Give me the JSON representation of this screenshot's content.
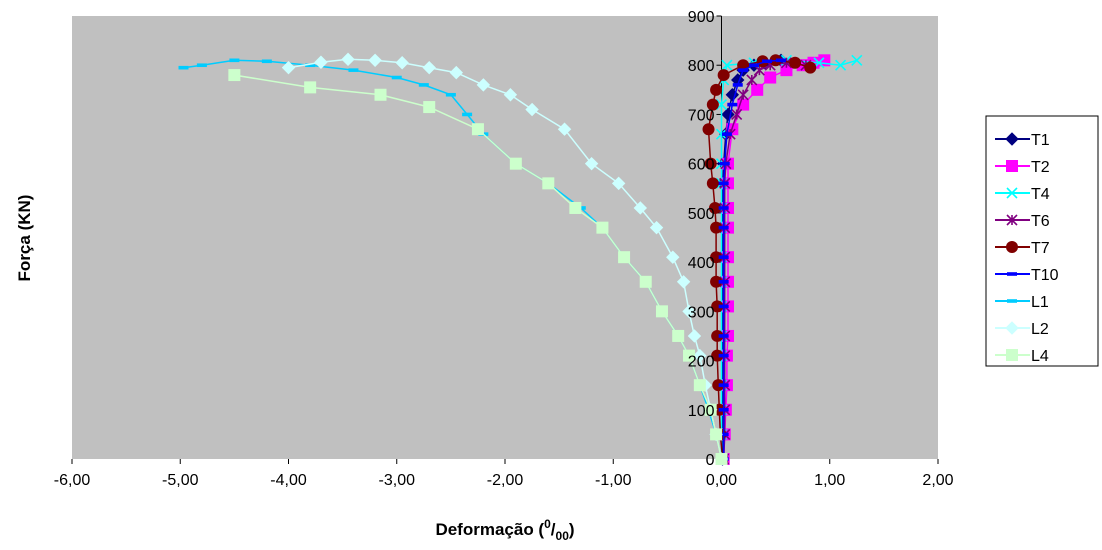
{
  "chart_data": {
    "type": "line",
    "xlabel": "Deformação (",
    "xlabel_sup": "0",
    "xlabel_slash": "/",
    "xlabel_sub": "00",
    "xlabel_end": ")",
    "ylabel": "Força (KN)",
    "xlim": [
      -6,
      2
    ],
    "ylim": [
      0,
      900
    ],
    "x_ticks": [
      -6,
      -5,
      -4,
      -3,
      -2,
      -1,
      0,
      1,
      2
    ],
    "x_tick_labels": [
      "-6,00",
      "-5,00",
      "-4,00",
      "-3,00",
      "-2,00",
      "-1,00",
      "0,00",
      "1,00",
      "2,00"
    ],
    "y_ticks": [
      0,
      100,
      200,
      300,
      400,
      500,
      600,
      700,
      800,
      900
    ],
    "y_tick_labels": [
      "0",
      "100",
      "200",
      "300",
      "400",
      "500",
      "600",
      "700",
      "800",
      "900"
    ],
    "plot_background": "#c0c0c0",
    "grid": false,
    "legend_position": "right",
    "series": [
      {
        "name": "T1",
        "color": "#000080",
        "marker": "diamond",
        "points": [
          [
            0.01,
            0
          ],
          [
            0.01,
            50
          ],
          [
            0.01,
            100
          ],
          [
            0.01,
            150
          ],
          [
            0.01,
            210
          ],
          [
            0.01,
            250
          ],
          [
            0.01,
            310
          ],
          [
            0.01,
            360
          ],
          [
            0.01,
            410
          ],
          [
            0.01,
            470
          ],
          [
            0.01,
            510
          ],
          [
            0.01,
            560
          ],
          [
            0.02,
            600
          ],
          [
            0.04,
            660
          ],
          [
            0.06,
            700
          ],
          [
            0.1,
            740
          ],
          [
            0.15,
            770
          ],
          [
            0.2,
            790
          ],
          [
            0.3,
            800
          ],
          [
            0.4,
            805
          ],
          [
            0.55,
            810
          ]
        ]
      },
      {
        "name": "T2",
        "color": "#ff00ff",
        "marker": "square",
        "points": [
          [
            0.02,
            0
          ],
          [
            0.03,
            50
          ],
          [
            0.04,
            100
          ],
          [
            0.05,
            150
          ],
          [
            0.05,
            210
          ],
          [
            0.06,
            250
          ],
          [
            0.06,
            310
          ],
          [
            0.06,
            360
          ],
          [
            0.06,
            410
          ],
          [
            0.06,
            470
          ],
          [
            0.06,
            510
          ],
          [
            0.06,
            560
          ],
          [
            0.06,
            600
          ],
          [
            0.1,
            670
          ],
          [
            0.2,
            720
          ],
          [
            0.33,
            750
          ],
          [
            0.45,
            775
          ],
          [
            0.6,
            790
          ],
          [
            0.75,
            800
          ],
          [
            0.85,
            805
          ],
          [
            0.95,
            810
          ]
        ]
      },
      {
        "name": "T4",
        "color": "#00ffff",
        "marker": "x",
        "points": [
          [
            0,
            0
          ],
          [
            0,
            50
          ],
          [
            0,
            100
          ],
          [
            0,
            150
          ],
          [
            0,
            210
          ],
          [
            0,
            250
          ],
          [
            0,
            310
          ],
          [
            0,
            360
          ],
          [
            0,
            410
          ],
          [
            0,
            470
          ],
          [
            0,
            510
          ],
          [
            0,
            560
          ],
          [
            0,
            600
          ],
          [
            0,
            660
          ],
          [
            0,
            720
          ],
          [
            0.02,
            770
          ],
          [
            0.05,
            800
          ],
          [
            0.3,
            805
          ],
          [
            0.6,
            810
          ],
          [
            0.9,
            805
          ],
          [
            1.1,
            800
          ],
          [
            1.25,
            810
          ]
        ]
      },
      {
        "name": "T6",
        "color": "#800080",
        "marker": "asterisk",
        "points": [
          [
            0.02,
            0
          ],
          [
            0.03,
            50
          ],
          [
            0.03,
            100
          ],
          [
            0.03,
            150
          ],
          [
            0.03,
            210
          ],
          [
            0.03,
            250
          ],
          [
            0.03,
            310
          ],
          [
            0.03,
            360
          ],
          [
            0.03,
            410
          ],
          [
            0.03,
            470
          ],
          [
            0.03,
            510
          ],
          [
            0.03,
            560
          ],
          [
            0.04,
            600
          ],
          [
            0.08,
            660
          ],
          [
            0.14,
            700
          ],
          [
            0.2,
            740
          ],
          [
            0.28,
            770
          ],
          [
            0.35,
            790
          ],
          [
            0.45,
            800
          ],
          [
            0.6,
            805
          ],
          [
            0.78,
            800
          ]
        ]
      },
      {
        "name": "T7",
        "color": "#800000",
        "marker": "circle",
        "points": [
          [
            0.01,
            0
          ],
          [
            -0.01,
            50
          ],
          [
            -0.02,
            100
          ],
          [
            -0.03,
            150
          ],
          [
            -0.04,
            210
          ],
          [
            -0.04,
            250
          ],
          [
            -0.04,
            310
          ],
          [
            -0.05,
            360
          ],
          [
            -0.05,
            410
          ],
          [
            -0.05,
            470
          ],
          [
            -0.06,
            510
          ],
          [
            -0.08,
            560
          ],
          [
            -0.1,
            600
          ],
          [
            -0.12,
            670
          ],
          [
            -0.08,
            720
          ],
          [
            -0.05,
            750
          ],
          [
            0.02,
            780
          ],
          [
            0.2,
            800
          ],
          [
            0.38,
            808
          ],
          [
            0.5,
            810
          ],
          [
            0.68,
            805
          ],
          [
            0.82,
            795
          ]
        ]
      },
      {
        "name": "T10",
        "color": "#0000ff",
        "marker": "dash",
        "points": [
          [
            0.02,
            0
          ],
          [
            0.02,
            50
          ],
          [
            0.02,
            100
          ],
          [
            0.02,
            150
          ],
          [
            0.02,
            210
          ],
          [
            0.02,
            250
          ],
          [
            0.02,
            310
          ],
          [
            0.02,
            360
          ],
          [
            0.02,
            410
          ],
          [
            0.02,
            470
          ],
          [
            0.02,
            510
          ],
          [
            0.02,
            560
          ],
          [
            0.03,
            600
          ],
          [
            0.05,
            660
          ],
          [
            0.1,
            720
          ],
          [
            0.15,
            760
          ],
          [
            0.2,
            790
          ],
          [
            0.3,
            800
          ],
          [
            0.42,
            808
          ],
          [
            0.55,
            810
          ]
        ]
      },
      {
        "name": "L1",
        "color": "#00ccff",
        "marker": "dash",
        "points": [
          [
            0,
            0
          ],
          [
            -0.05,
            50
          ],
          [
            -0.12,
            100
          ],
          [
            -0.2,
            150
          ],
          [
            -0.3,
            210
          ],
          [
            -0.4,
            250
          ],
          [
            -0.55,
            300
          ],
          [
            -0.7,
            360
          ],
          [
            -0.9,
            410
          ],
          [
            -1.1,
            470
          ],
          [
            -1.3,
            510
          ],
          [
            -1.6,
            560
          ],
          [
            -1.9,
            600
          ],
          [
            -2.2,
            660
          ],
          [
            -2.35,
            700
          ],
          [
            -2.5,
            740
          ],
          [
            -2.75,
            760
          ],
          [
            -3.0,
            775
          ],
          [
            -3.4,
            790
          ],
          [
            -3.8,
            800
          ],
          [
            -4.2,
            808
          ],
          [
            -4.5,
            810
          ],
          [
            -4.8,
            800
          ],
          [
            -4.97,
            795
          ]
        ]
      },
      {
        "name": "L2",
        "color": "#ccffff",
        "marker": "diamond",
        "points": [
          [
            0,
            0
          ],
          [
            -0.05,
            50
          ],
          [
            -0.1,
            100
          ],
          [
            -0.15,
            150
          ],
          [
            -0.2,
            210
          ],
          [
            -0.25,
            250
          ],
          [
            -0.3,
            300
          ],
          [
            -0.35,
            360
          ],
          [
            -0.45,
            410
          ],
          [
            -0.6,
            470
          ],
          [
            -0.75,
            510
          ],
          [
            -0.95,
            560
          ],
          [
            -1.2,
            600
          ],
          [
            -1.45,
            670
          ],
          [
            -1.75,
            710
          ],
          [
            -1.95,
            740
          ],
          [
            -2.2,
            760
          ],
          [
            -2.45,
            785
          ],
          [
            -2.7,
            795
          ],
          [
            -2.95,
            805
          ],
          [
            -3.2,
            810
          ],
          [
            -3.45,
            812
          ],
          [
            -3.7,
            806
          ],
          [
            -4.0,
            795
          ]
        ]
      },
      {
        "name": "L4",
        "color": "#ccffcc",
        "marker": "square",
        "points": [
          [
            0,
            0
          ],
          [
            -0.05,
            50
          ],
          [
            -0.1,
            100
          ],
          [
            -0.2,
            150
          ],
          [
            -0.3,
            210
          ],
          [
            -0.4,
            250
          ],
          [
            -0.55,
            300
          ],
          [
            -0.7,
            360
          ],
          [
            -0.9,
            410
          ],
          [
            -1.1,
            470
          ],
          [
            -1.35,
            510
          ],
          [
            -1.6,
            560
          ],
          [
            -1.9,
            600
          ],
          [
            -2.25,
            670
          ],
          [
            -2.7,
            715
          ],
          [
            -3.15,
            740
          ],
          [
            -3.8,
            755
          ],
          [
            -4.5,
            780
          ]
        ]
      }
    ]
  }
}
